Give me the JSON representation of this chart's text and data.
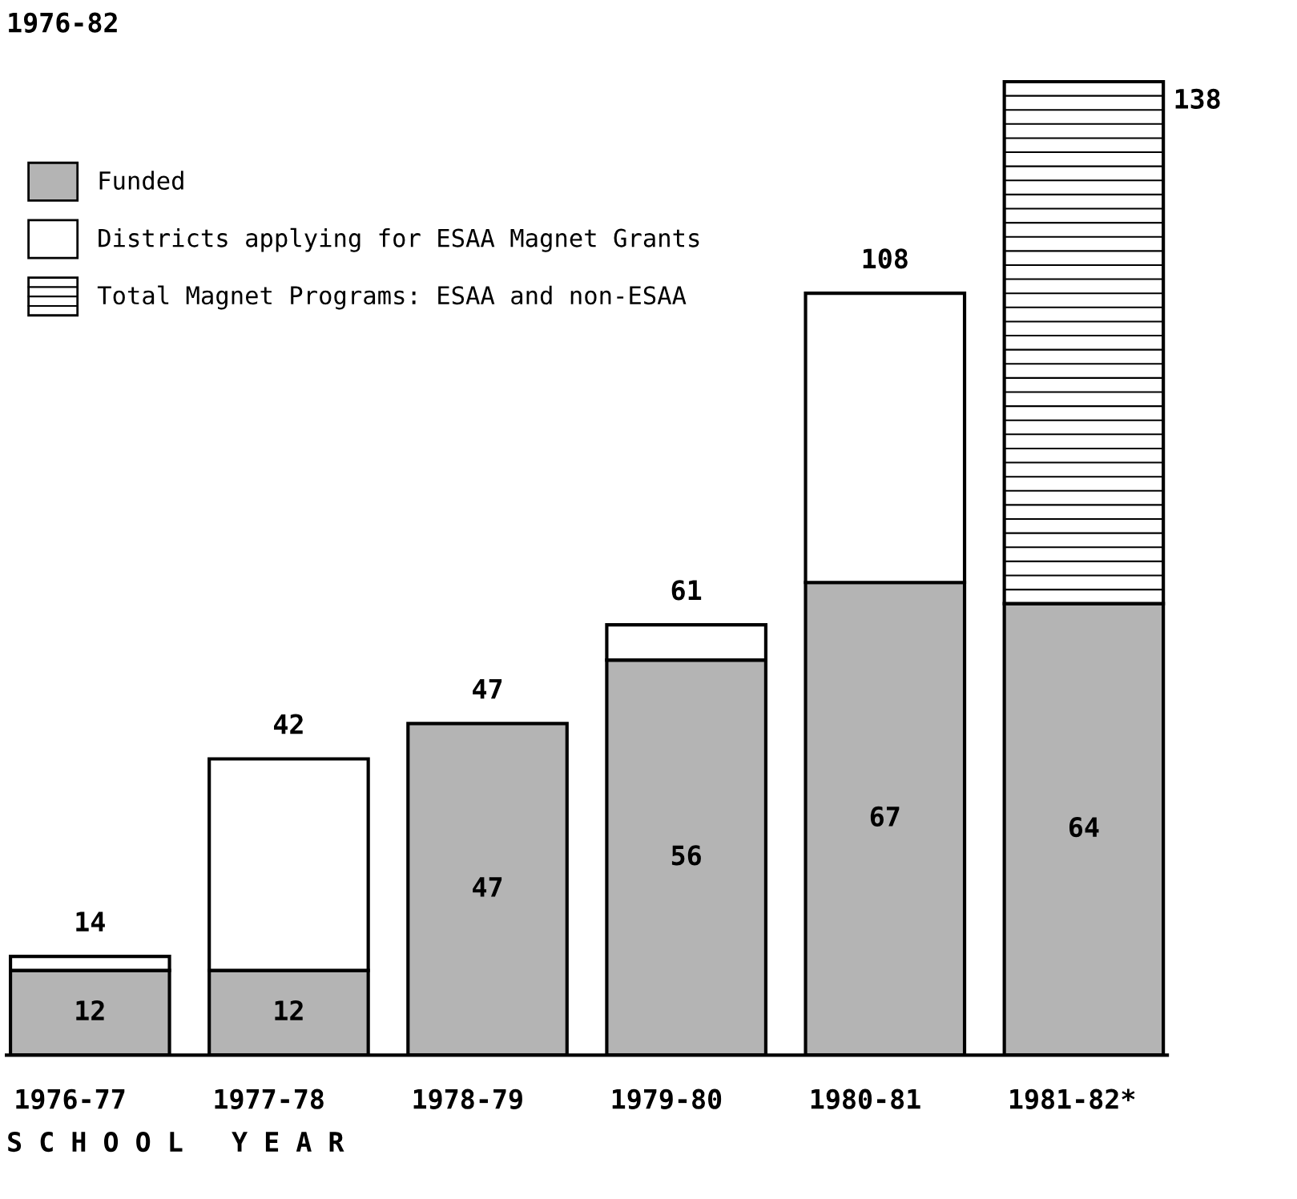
{
  "chart_data": {
    "type": "bar",
    "title": "1976-82",
    "xlabel": "S C H O O L   Y E A R",
    "categories": [
      "1976-77",
      "1977-78",
      "1978-79",
      "1979-80",
      "1980-81",
      "1981-82*"
    ],
    "stacked": true,
    "legend": "top left",
    "grid": false,
    "tick_labels": "x",
    "series": [
      {
        "name": "Funded",
        "color": "#b4b4b4",
        "values": [
          12,
          12,
          47,
          56,
          67,
          64
        ],
        "value_labels": [
          "12",
          "12",
          "47",
          "56",
          "67",
          "64"
        ]
      },
      {
        "name": "Districts applying for ESAA Magnet Grants",
        "color": "#ffffff",
        "values": [
          2,
          30,
          null,
          5,
          41,
          null
        ]
      },
      {
        "name": "Total Magnet Programs: ESAA and non-ESAA",
        "color": "#ffffff",
        "values": [
          null,
          null,
          null,
          null,
          null,
          74
        ]
      }
    ],
    "totals": [
      "14",
      "42",
      "47",
      "61",
      "108",
      "138"
    ]
  }
}
